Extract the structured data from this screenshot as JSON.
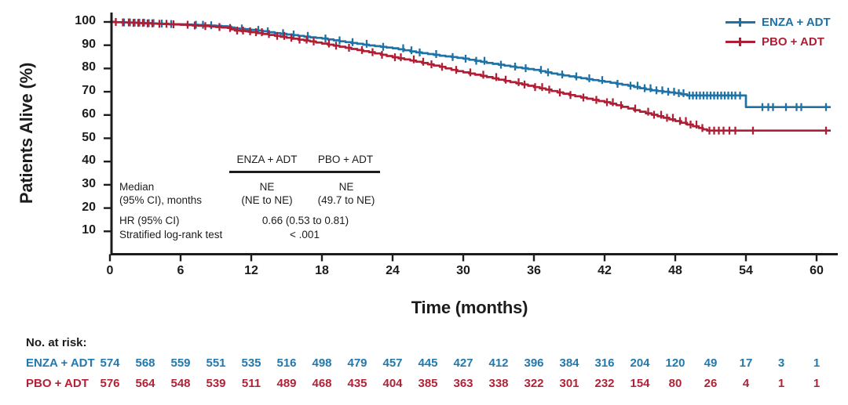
{
  "figure": {
    "ylabel": "Patients Alive (%)",
    "xlabel": "Time (months)",
    "legend": [
      {
        "label": "ENZA + ADT"
      },
      {
        "label": "PBO + ADT"
      }
    ]
  },
  "stats": {
    "headers": [
      "ENZA + ADT",
      "PBO + ADT"
    ],
    "median_label1": "Median",
    "median_label2": "(95% CI), months",
    "enza_median": "NE",
    "enza_ci": "(NE to NE)",
    "pbo_median": "NE",
    "pbo_ci": "(49.7 to NE)",
    "hr_label": "HR (95% CI)",
    "hr_value": "0.66 (0.53 to 0.81)",
    "logrank_label": "Stratified log-rank test",
    "logrank_value": "< .001"
  },
  "at_risk": {
    "title": "No. at risk:",
    "times": [
      0,
      3,
      6,
      9,
      12,
      15,
      18,
      21,
      24,
      27,
      30,
      33,
      36,
      39,
      42,
      45,
      48,
      51,
      54,
      57,
      60
    ],
    "groups": [
      {
        "label": "ENZA + ADT",
        "color": "#2279AD",
        "counts": [
          574,
          568,
          559,
          551,
          535,
          516,
          498,
          479,
          457,
          445,
          427,
          412,
          396,
          384,
          316,
          204,
          120,
          49,
          17,
          3,
          1
        ]
      },
      {
        "label": "PBO + ADT",
        "color": "#B22236",
        "counts": [
          576,
          564,
          548,
          539,
          511,
          489,
          468,
          435,
          404,
          385,
          363,
          338,
          322,
          301,
          232,
          154,
          80,
          26,
          4,
          1,
          1
        ]
      }
    ]
  },
  "chart_data": {
    "type": "line",
    "subtype": "kaplan-meier-step",
    "title": "",
    "xlabel": "Time (months)",
    "ylabel": "Patients Alive (%)",
    "xlim": [
      0,
      61.5
    ],
    "ylim": [
      0,
      100
    ],
    "xticks": [
      0,
      6,
      12,
      18,
      24,
      30,
      36,
      42,
      48,
      54,
      60
    ],
    "yticks": [
      10,
      20,
      30,
      40,
      50,
      60,
      70,
      80,
      90,
      100
    ],
    "grid": false,
    "legend_position": "top-right",
    "axis_color": "#1c1c1c",
    "series": [
      {
        "name": "ENZA + ADT",
        "color": "#1E72A6",
        "step": "after",
        "end": 61.2,
        "points": [
          [
            0,
            100
          ],
          [
            1,
            99.8
          ],
          [
            2,
            99.7
          ],
          [
            3,
            99.5
          ],
          [
            4,
            99.3
          ],
          [
            5,
            99.1
          ],
          [
            6,
            99
          ],
          [
            7,
            98.8
          ],
          [
            8,
            98.6
          ],
          [
            9,
            98.3
          ],
          [
            10,
            98
          ],
          [
            10.6,
            97.2
          ],
          [
            11.5,
            96.9
          ],
          [
            12,
            96.6
          ],
          [
            13,
            96
          ],
          [
            14,
            95.2
          ],
          [
            15,
            94.6
          ],
          [
            16,
            94
          ],
          [
            17,
            93.4
          ],
          [
            18,
            92.9
          ],
          [
            19,
            92.1
          ],
          [
            20,
            91.3
          ],
          [
            21,
            90.6
          ],
          [
            22,
            89.9
          ],
          [
            23,
            89.3
          ],
          [
            24,
            88.7
          ],
          [
            25,
            87.8
          ],
          [
            26,
            86.9
          ],
          [
            27,
            86.2
          ],
          [
            28,
            85.5
          ],
          [
            29,
            84.9
          ],
          [
            30,
            84.2
          ],
          [
            31,
            83.3
          ],
          [
            32,
            82.4
          ],
          [
            33,
            81.6
          ],
          [
            34,
            80.8
          ],
          [
            35,
            80.1
          ],
          [
            36,
            79.4
          ],
          [
            37,
            78.3
          ],
          [
            38,
            77.4
          ],
          [
            39,
            76.6
          ],
          [
            40,
            75.8
          ],
          [
            41,
            75
          ],
          [
            42,
            74.3
          ],
          [
            43,
            73.4
          ],
          [
            44,
            72.6
          ],
          [
            45,
            71.5
          ],
          [
            46,
            70.6
          ],
          [
            47,
            70
          ],
          [
            48,
            69.4
          ],
          [
            49,
            68.4
          ],
          [
            54,
            63.4
          ],
          [
            61.2,
            63.4
          ]
        ],
        "censors": [
          1.2,
          1.7,
          2.1,
          2.5,
          2.9,
          3.3,
          3.7,
          4.4,
          5.2,
          7.3,
          7.9,
          8.6,
          11.2,
          12.6,
          13.4,
          14.7,
          15.6,
          16.8,
          18.3,
          19.5,
          20.6,
          21.8,
          23.2,
          24.9,
          25.6,
          26.3,
          27.7,
          29.1,
          30.2,
          31.1,
          31.8,
          33.2,
          34.4,
          35.3,
          36.6,
          37.2,
          38.4,
          39.6,
          40.7,
          41.8,
          43.1,
          44.2,
          44.8,
          45.4,
          45.9,
          46.4,
          46.9,
          47.4,
          47.9,
          48.3,
          48.7,
          49.2,
          49.5,
          49.8,
          50.1,
          50.4,
          50.7,
          51,
          51.3,
          51.6,
          51.9,
          52.2,
          52.5,
          52.8,
          53.1,
          53.5,
          55.4,
          55.9,
          56.3,
          57.4,
          58.3,
          58.7,
          60.8
        ]
      },
      {
        "name": "PBO + ADT",
        "color": "#B01E35",
        "step": "after",
        "end": 61.2,
        "points": [
          [
            0,
            100
          ],
          [
            1,
            99.8
          ],
          [
            2,
            99.6
          ],
          [
            3,
            99.4
          ],
          [
            4,
            99.2
          ],
          [
            5,
            99
          ],
          [
            6,
            98.8
          ],
          [
            7,
            98.5
          ],
          [
            8,
            98.2
          ],
          [
            9,
            97.8
          ],
          [
            10,
            97.4
          ],
          [
            10.6,
            96.3
          ],
          [
            11.5,
            96
          ],
          [
            12,
            95.6
          ],
          [
            13,
            94.8
          ],
          [
            14,
            94
          ],
          [
            15,
            93.2
          ],
          [
            16,
            92.4
          ],
          [
            17,
            91.6
          ],
          [
            18,
            90.7
          ],
          [
            19,
            89.8
          ],
          [
            20,
            88.9
          ],
          [
            21,
            87.9
          ],
          [
            22,
            87
          ],
          [
            23,
            85.9
          ],
          [
            24,
            84.8
          ],
          [
            25,
            83.9
          ],
          [
            26,
            82.9
          ],
          [
            27,
            81.8
          ],
          [
            28,
            80.7
          ],
          [
            29,
            79.4
          ],
          [
            30,
            78.3
          ],
          [
            31,
            77.3
          ],
          [
            32,
            76.3
          ],
          [
            33,
            75.2
          ],
          [
            34,
            74.1
          ],
          [
            35,
            73.1
          ],
          [
            36,
            72
          ],
          [
            37,
            70.9
          ],
          [
            38,
            69.7
          ],
          [
            39,
            68.6
          ],
          [
            40,
            67.5
          ],
          [
            41,
            66.5
          ],
          [
            42,
            65.5
          ],
          [
            43,
            64.2
          ],
          [
            44,
            62.8
          ],
          [
            45,
            61.4
          ],
          [
            46,
            60.1
          ],
          [
            47,
            58.8
          ],
          [
            48,
            57.4
          ],
          [
            49,
            55.9
          ],
          [
            50,
            54.4
          ],
          [
            50.7,
            53.3
          ],
          [
            61.2,
            53.3
          ]
        ],
        "censors": [
          0.5,
          1.1,
          1.6,
          2,
          2.4,
          2.8,
          3.2,
          3.6,
          4.2,
          4.8,
          5.4,
          6.6,
          7.2,
          8.1,
          9.3,
          10.2,
          10.8,
          11.3,
          11.9,
          12.4,
          12.9,
          13.5,
          14.2,
          14.8,
          15.4,
          16.1,
          16.7,
          17.3,
          18.6,
          19.2,
          20.3,
          21.4,
          22.3,
          23.1,
          24.2,
          24.7,
          25.8,
          26.6,
          27.3,
          28.2,
          29.4,
          30.6,
          31.7,
          32.8,
          33.6,
          34.7,
          35.2,
          36.1,
          36.7,
          37.3,
          38.2,
          39.1,
          40.2,
          41.3,
          42.2,
          42.7,
          43.4,
          44.6,
          45.7,
          46.2,
          46.8,
          47.3,
          47.8,
          48.4,
          48.9,
          49.3,
          49.8,
          50.3,
          50.9,
          51.3,
          51.7,
          52.1,
          52.6,
          53.1,
          54.6,
          60.8
        ]
      }
    ]
  }
}
